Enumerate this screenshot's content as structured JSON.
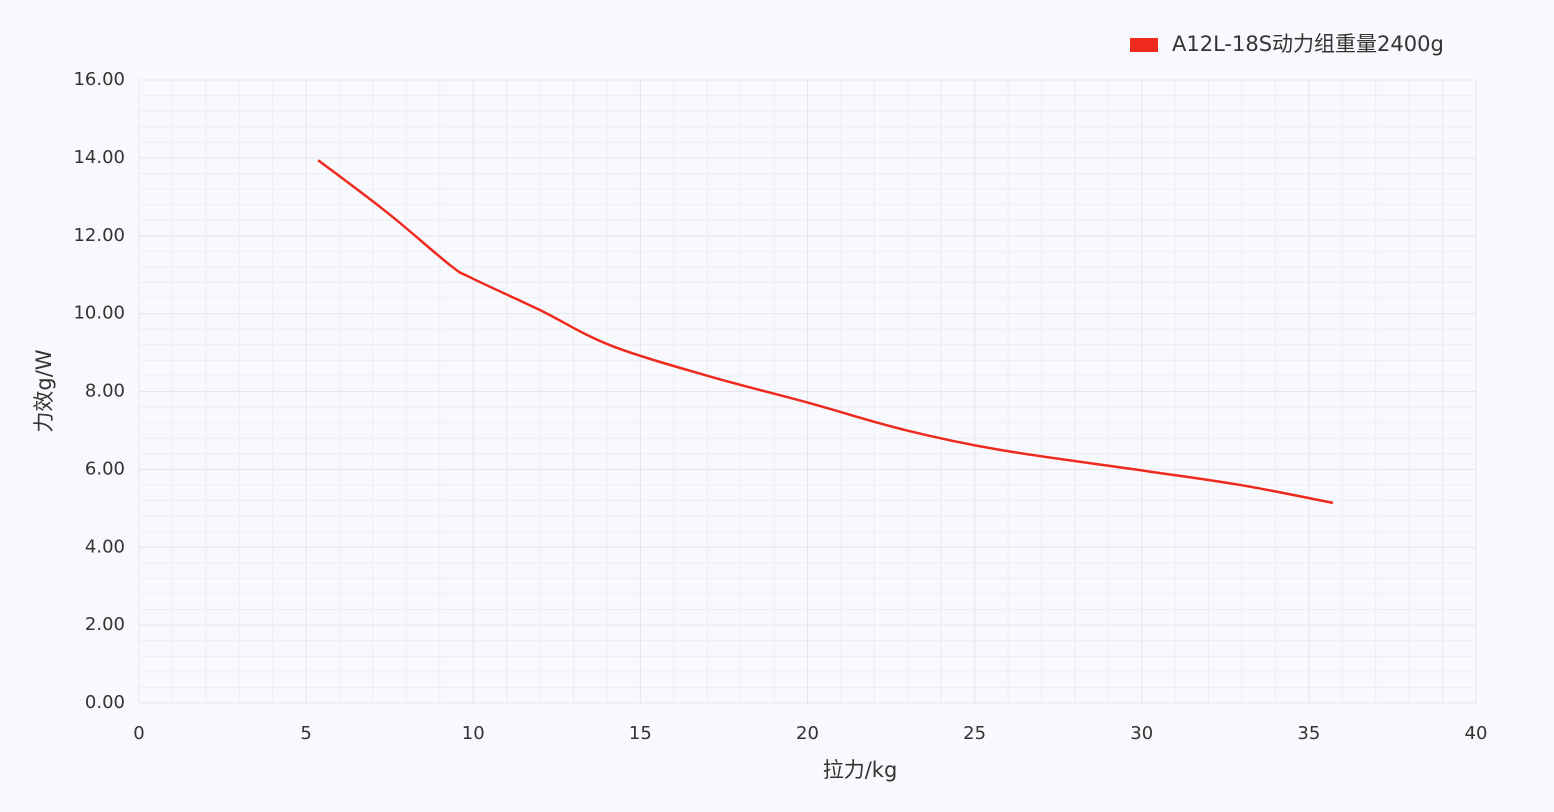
{
  "chart_data": {
    "type": "line",
    "x_label": "拉力/kg",
    "y_label": "力效g/W",
    "series": [
      {
        "name": "A12L-18S动力组重量2400g",
        "color": "#ee2a1e",
        "x": [
          5.36,
          7.45,
          9.3,
          9.96,
          12.0,
          14.09,
          17.02,
          20.07,
          22.92,
          25.76,
          29.95,
          32.94,
          35.72
        ],
        "values": [
          13.94,
          12.58,
          11.25,
          10.91,
          10.09,
          9.19,
          8.4,
          7.7,
          7.01,
          6.5,
          5.98,
          5.6,
          5.14
        ]
      }
    ],
    "xlim": [
      0,
      40
    ],
    "xticks": [
      0,
      5,
      10,
      15,
      20,
      25,
      30,
      35,
      40
    ],
    "ylim": [
      0,
      16
    ],
    "yticks": [
      {
        "value": 0,
        "label": "0.00"
      },
      {
        "value": 2,
        "label": "2.00"
      },
      {
        "value": 4,
        "label": "4.00"
      },
      {
        "value": 6,
        "label": "6.00"
      },
      {
        "value": 8,
        "label": "8.00"
      },
      {
        "value": 10,
        "label": "10.00"
      },
      {
        "value": 12,
        "label": "12.00"
      },
      {
        "value": 14,
        "label": "14.00"
      },
      {
        "value": 16,
        "label": "16.00"
      }
    ],
    "grid": true,
    "legend": "top-right"
  }
}
